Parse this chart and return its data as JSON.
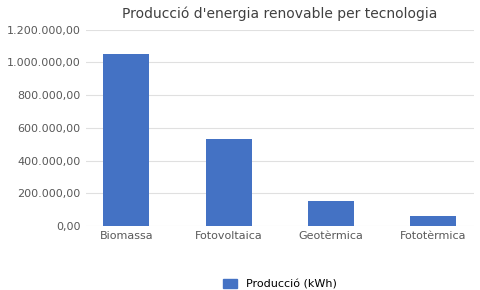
{
  "title": "Producció d'energia renovable per tecnologia",
  "categories": [
    "Biomassa",
    "Fotovoltaica",
    "Geotèrmica",
    "Fototèrmica"
  ],
  "values": [
    1050000,
    530000,
    155000,
    60000
  ],
  "bar_color": "#4472C4",
  "ylim": [
    0,
    1200000
  ],
  "yticks": [
    0,
    200000,
    400000,
    600000,
    800000,
    1000000,
    1200000
  ],
  "ytick_labels": [
    "0,00",
    "200.000,00",
    "400.000,00",
    "600.000,00",
    "800.000,00",
    "1.000.000,00",
    "1.200.000,00"
  ],
  "legend_label": "Producció (kWh)",
  "background_color": "#ffffff",
  "grid_color": "#e0e0e0",
  "bar_width": 0.45,
  "title_fontsize": 10,
  "tick_fontsize": 8,
  "legend_fontsize": 8,
  "tick_color": "#595959"
}
